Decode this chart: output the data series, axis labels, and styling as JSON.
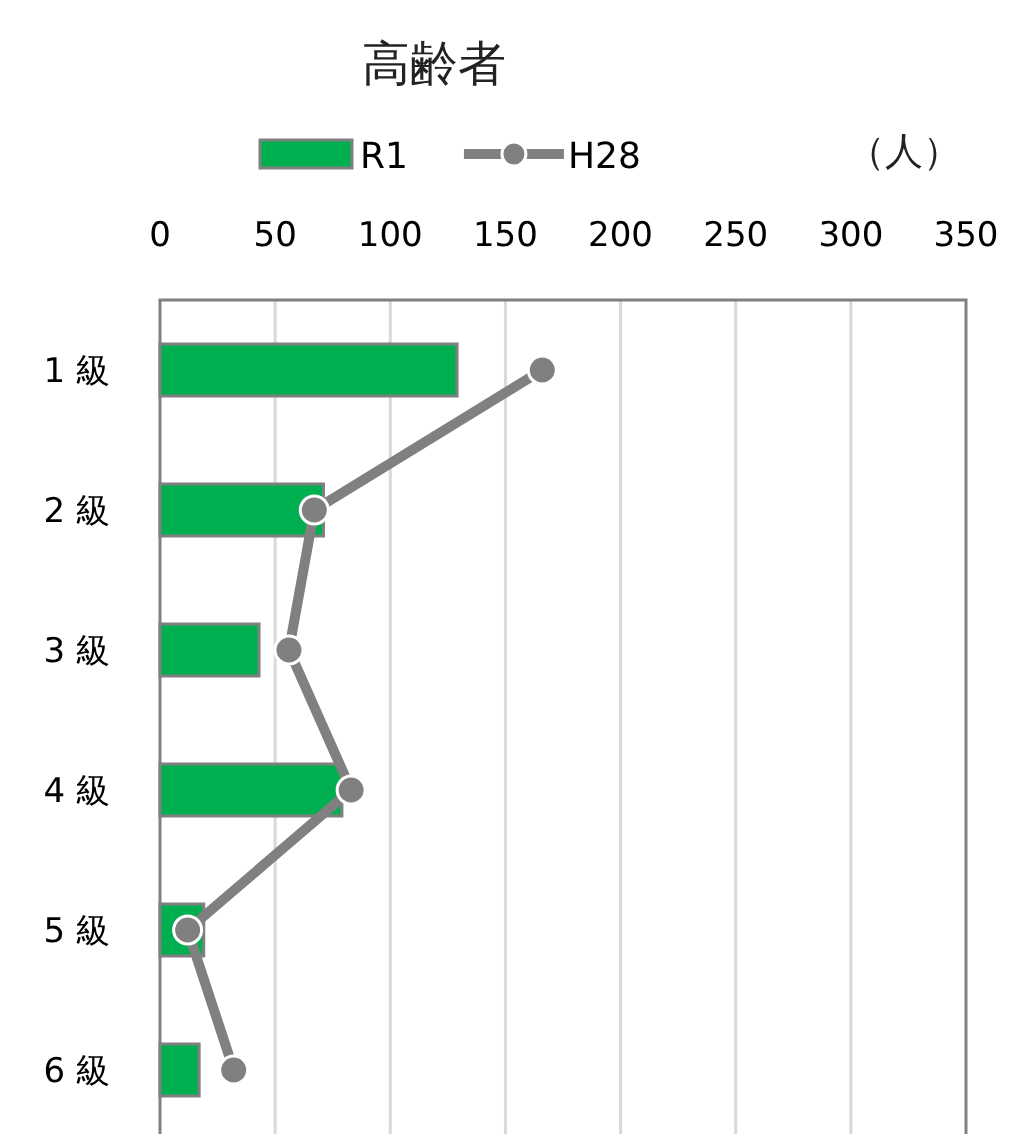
{
  "chart_data": {
    "type": "bar",
    "orientation": "horizontal",
    "title": "高齢者",
    "xlabel": "（人）",
    "categories": [
      "1 級",
      "2 級",
      "3 級",
      "4 級",
      "5 級",
      "6 級"
    ],
    "series": [
      {
        "name": "R1",
        "color": "#00b050",
        "values": [
          129,
          71,
          43,
          79,
          19,
          17
        ]
      },
      {
        "name": "H28",
        "type": "line",
        "color": "#808080",
        "marker": "circle",
        "values": [
          166,
          67,
          56,
          83,
          12,
          32
        ]
      }
    ],
    "xlim": [
      0,
      350
    ],
    "xticks": [
      0,
      50,
      100,
      150,
      200,
      250,
      300,
      350
    ],
    "grid": "x",
    "legend": "top"
  }
}
